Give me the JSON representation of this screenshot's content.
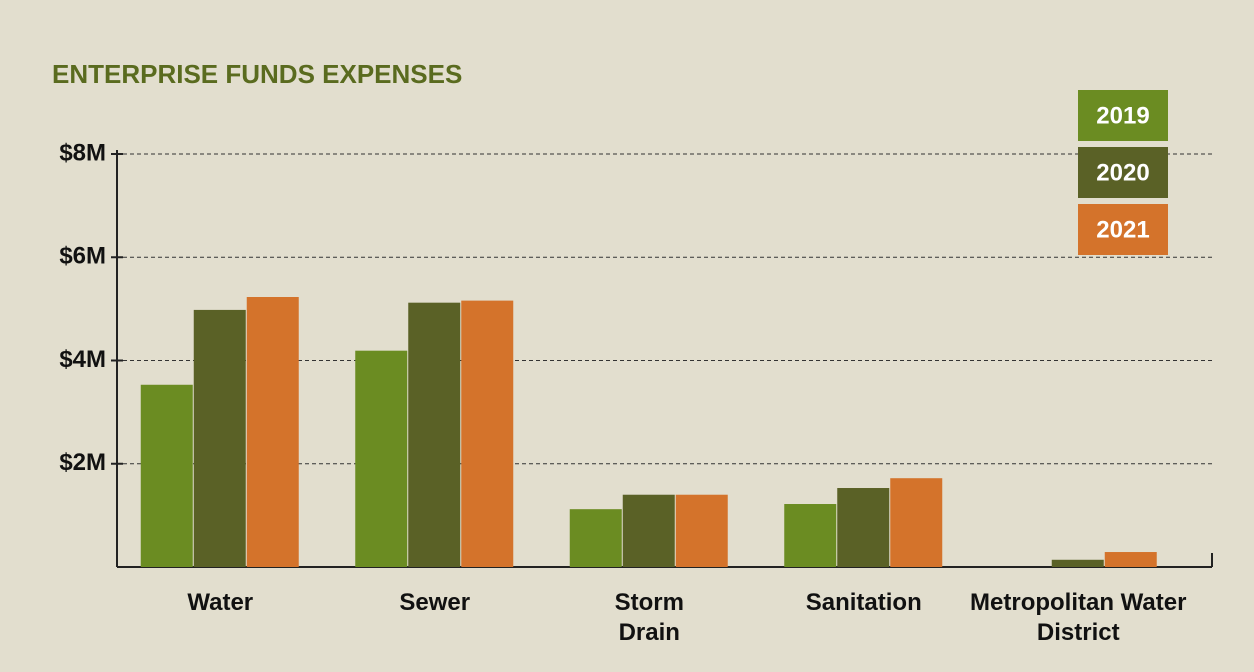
{
  "chart_data": {
    "type": "bar",
    "title": "ENTERPRISE FUNDS EXPENSES",
    "categories": [
      "Water",
      "Sewer",
      "Storm Drain",
      "Sanitation",
      "Metropolitan Water District"
    ],
    "series": [
      {
        "name": "2019",
        "color": "#6b8c22",
        "values": [
          3530000,
          4190000,
          1120000,
          1220000,
          0
        ]
      },
      {
        "name": "2020",
        "color": "#5a6126",
        "values": [
          4980000,
          5120000,
          1400000,
          1530000,
          140000
        ]
      },
      {
        "name": "2021",
        "color": "#d4732b",
        "values": [
          5230000,
          5160000,
          1400000,
          1720000,
          290000
        ]
      }
    ],
    "ylim": [
      0,
      8000000
    ],
    "yticks": [
      {
        "value": 2000000,
        "label": "$2M"
      },
      {
        "value": 4000000,
        "label": "$4M"
      },
      {
        "value": 6000000,
        "label": "$6M"
      },
      {
        "value": 8000000,
        "label": "$8M"
      }
    ],
    "grid": true,
    "legend": "upper right"
  }
}
